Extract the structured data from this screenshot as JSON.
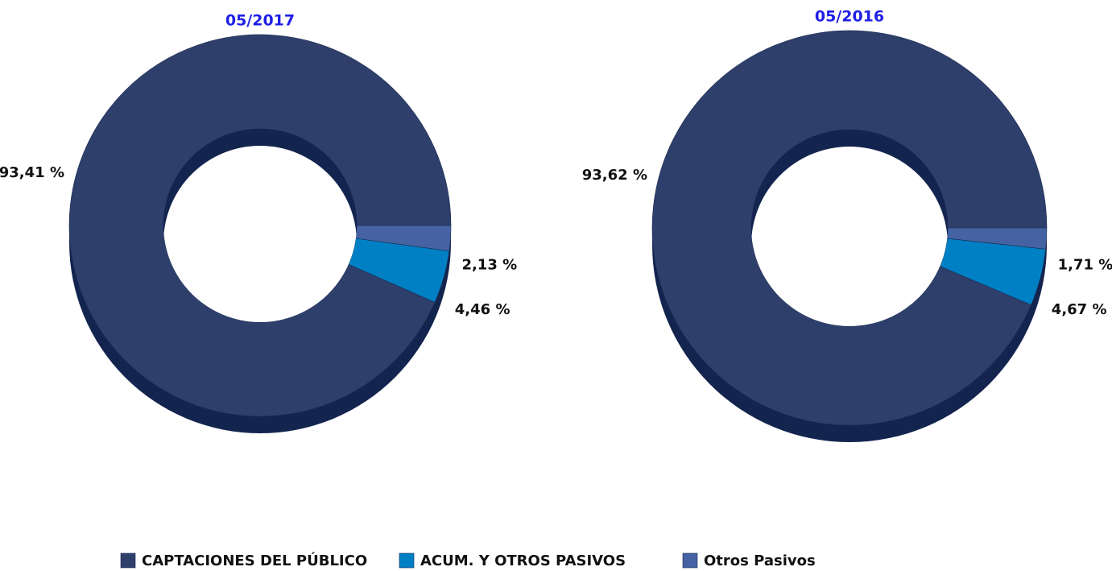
{
  "chart_data": [
    {
      "type": "donut",
      "title": "05/2017",
      "values": [
        93.41,
        4.46,
        2.13
      ],
      "value_labels": [
        "93,41 %",
        "4,46 %",
        "2,13 %"
      ]
    },
    {
      "type": "donut",
      "title": "05/2016",
      "values": [
        93.62,
        4.67,
        1.71
      ],
      "value_labels": [
        "93,62 %",
        "4,67 %",
        "1,71 %"
      ]
    }
  ],
  "legend": {
    "categories": [
      "CAPTACIONES DEL PÚBLICO",
      "ACUM. Y OTROS PASIVOS",
      "Otros Pasivos"
    ],
    "colors": [
      "#2e3f6b",
      "#0080c4",
      "#4563a3"
    ]
  }
}
